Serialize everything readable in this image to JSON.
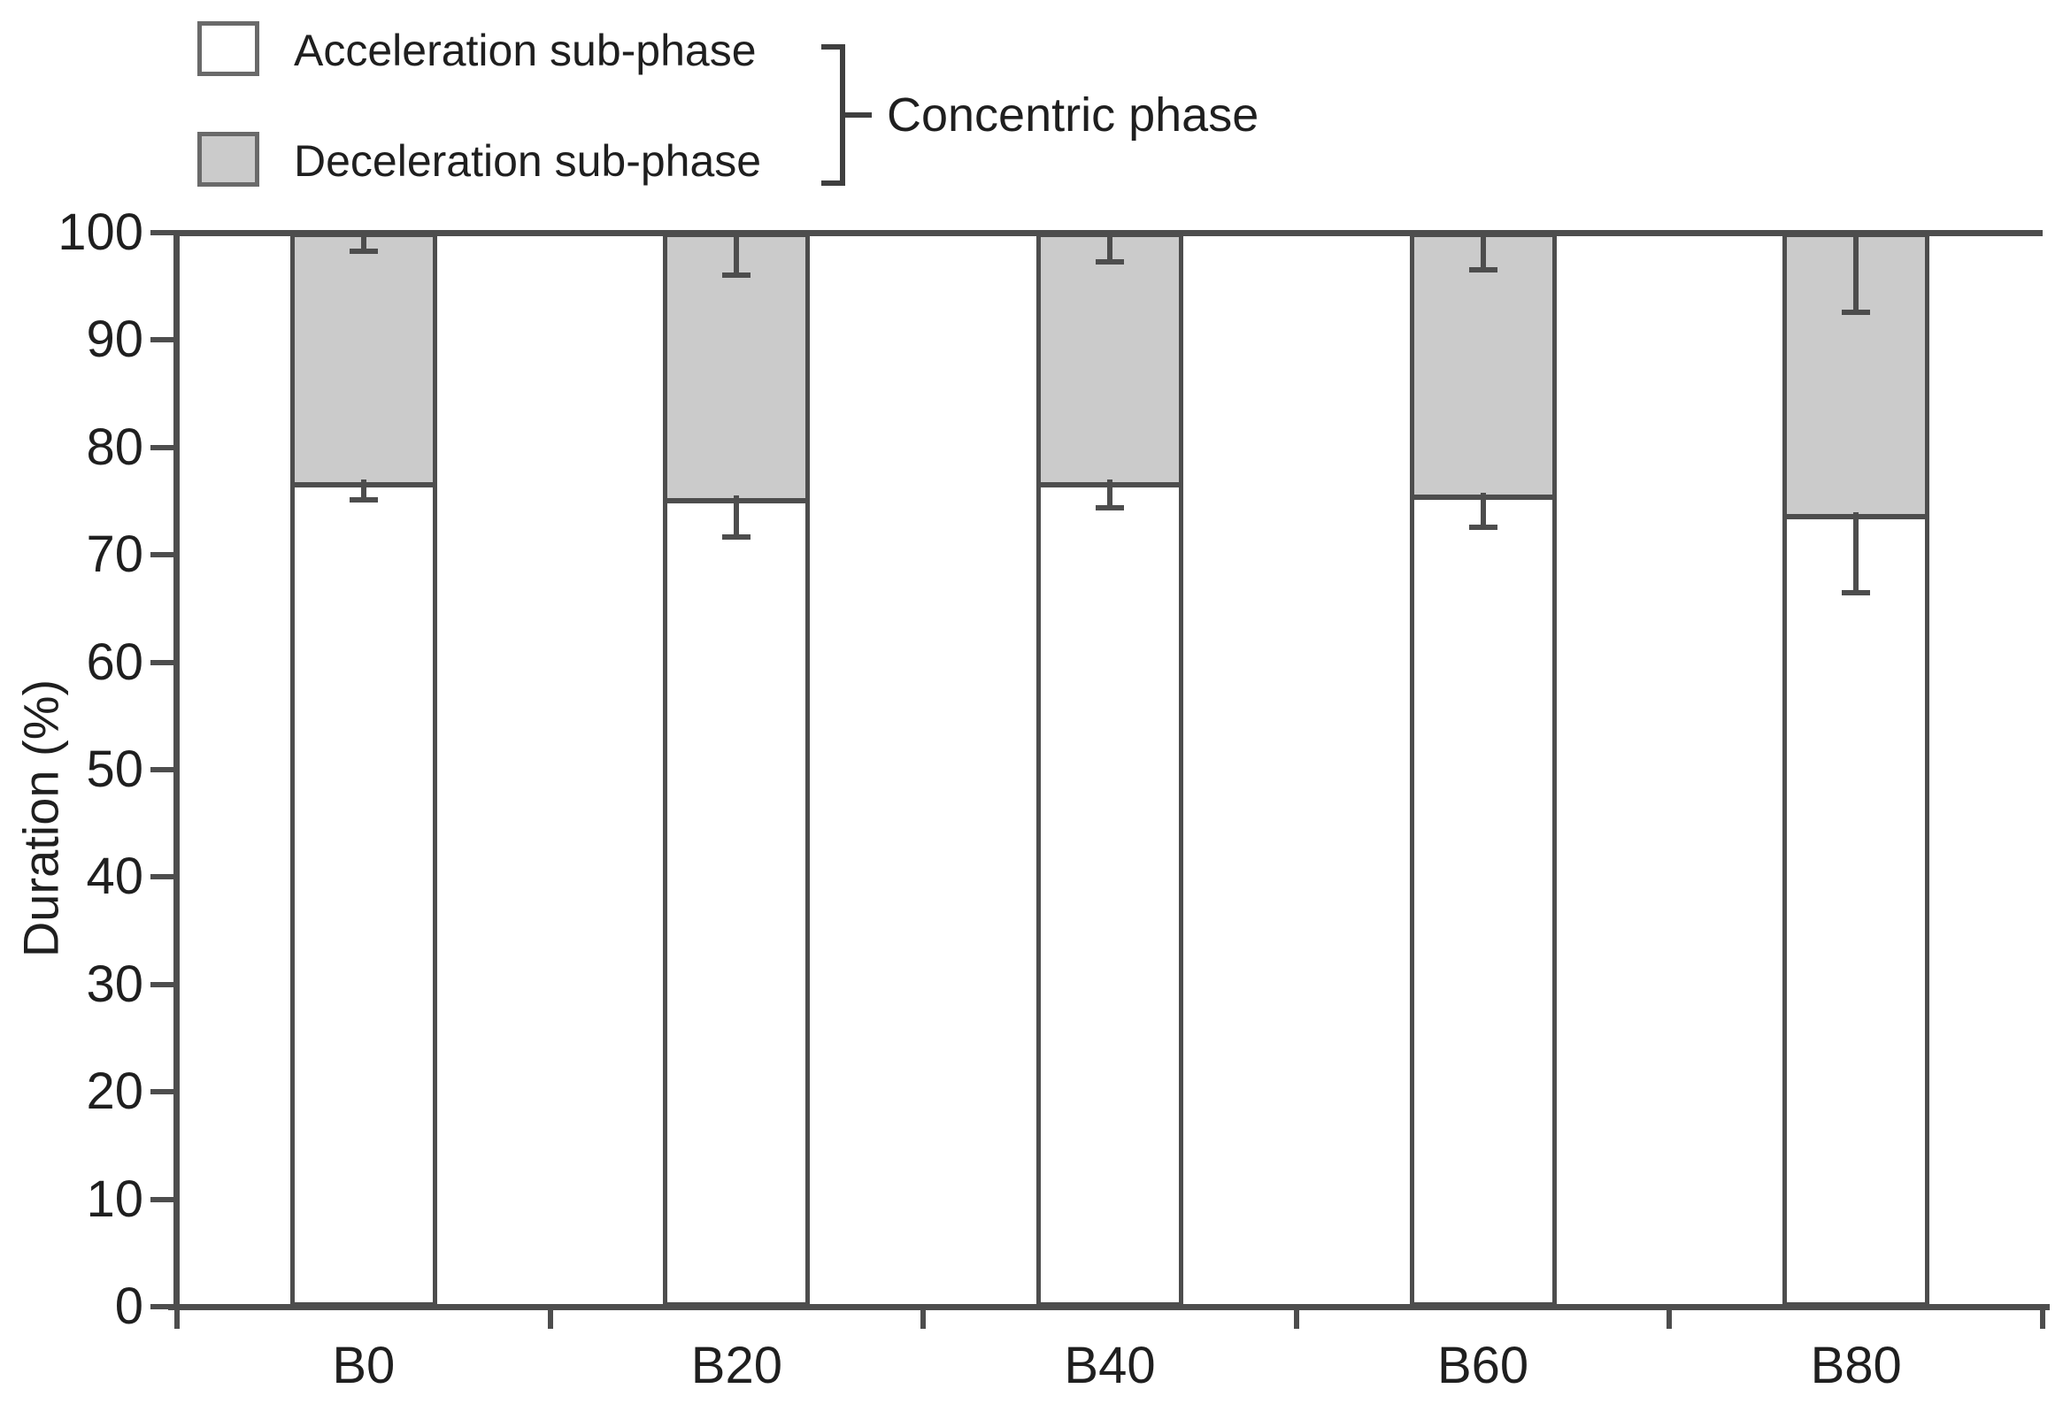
{
  "figure": {
    "background": "#ffffff",
    "axis_color": "#4d4d4d",
    "text_color": "#1f1f1f"
  },
  "legend": {
    "items": [
      {
        "label": "Acceleration sub-phase",
        "swatch_color": "#ffffff"
      },
      {
        "label": "Deceleration sub-phase",
        "swatch_color": "#cbcbcb"
      }
    ],
    "group_label": "Concentric phase"
  },
  "chart_data": {
    "type": "bar",
    "stacked": true,
    "title": "",
    "categories": [
      "B0",
      "B20",
      "B40",
      "B60",
      "B80"
    ],
    "series": [
      {
        "name": "Acceleration sub-phase",
        "color": "#ffffff",
        "values": [
          77,
          75.5,
          77,
          75.8,
          74
        ]
      },
      {
        "name": "Deceleration sub-phase",
        "color": "#cbcbcb",
        "values": [
          23,
          24.5,
          23,
          24.2,
          26
        ]
      }
    ],
    "error_bars": {
      "acceleration_lower": [
        2,
        4,
        2.8,
        3.4,
        7.7
      ],
      "deceleration_lower": [
        1.9,
        4.1,
        2.9,
        3.6,
        7.6
      ]
    },
    "xlabel": "",
    "ylabel": "Duration (%)",
    "ylim": [
      0,
      100
    ],
    "yticks": [
      0,
      10,
      20,
      30,
      40,
      50,
      60,
      70,
      80,
      90,
      100
    ],
    "grid": false,
    "legend_position": "top-left"
  }
}
